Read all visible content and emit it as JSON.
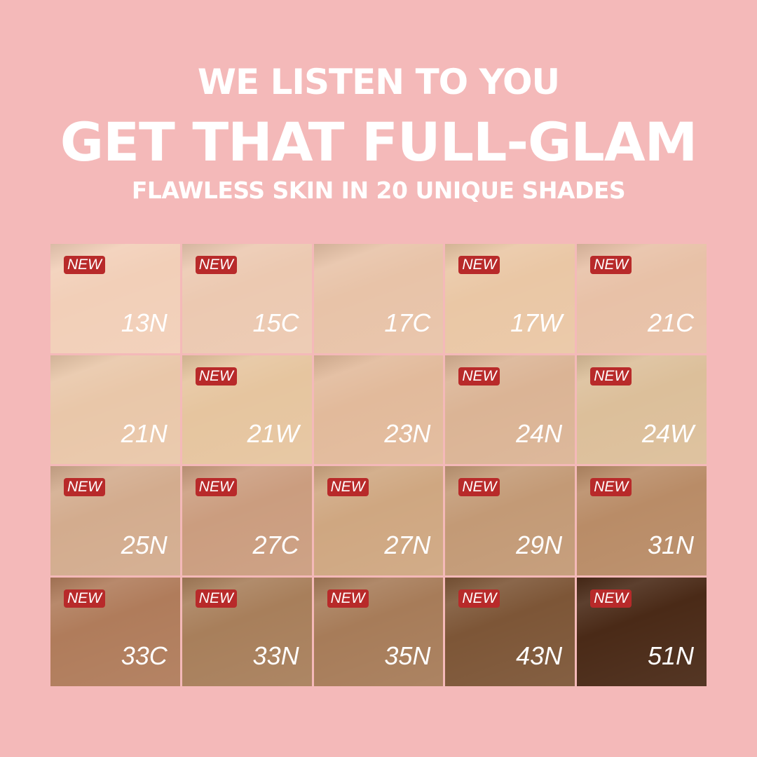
{
  "headline": {
    "line1": "WE LISTEN TO YOU",
    "line2": "GET THAT FULL-GLAM",
    "line3": "FLAWLESS SKIN IN 20 UNIQUE SHADES"
  },
  "colors": {
    "background": "#f4b9b9",
    "badge": "#b82a2a"
  },
  "shades": [
    {
      "name": "13N",
      "new": true,
      "color": "#f2cfb8"
    },
    {
      "name": "15C",
      "new": true,
      "color": "#ecc9b1"
    },
    {
      "name": "17C",
      "new": false,
      "color": "#e8c3a8"
    },
    {
      "name": "17W",
      "new": true,
      "color": "#eac7a5"
    },
    {
      "name": "21C",
      "new": true,
      "color": "#e8c1a7"
    },
    {
      "name": "21N",
      "new": false,
      "color": "#e9c7a9"
    },
    {
      "name": "21W",
      "new": true,
      "color": "#e6c59f"
    },
    {
      "name": "23N",
      "new": false,
      "color": "#e2ba9b"
    },
    {
      "name": "24N",
      "new": true,
      "color": "#dbb495"
    },
    {
      "name": "24W",
      "new": true,
      "color": "#dcbf9a"
    },
    {
      "name": "25N",
      "new": true,
      "color": "#d3ac8e"
    },
    {
      "name": "27C",
      "new": true,
      "color": "#cb9d7f"
    },
    {
      "name": "27N",
      "new": true,
      "color": "#cfa781"
    },
    {
      "name": "29N",
      "new": true,
      "color": "#c39a76"
    },
    {
      "name": "31N",
      "new": true,
      "color": "#b98c67"
    },
    {
      "name": "33C",
      "new": true,
      "color": "#b07c5b"
    },
    {
      "name": "33N",
      "new": true,
      "color": "#a87f5b"
    },
    {
      "name": "35N",
      "new": true,
      "color": "#a77c59"
    },
    {
      "name": "43N",
      "new": true,
      "color": "#7d5637"
    },
    {
      "name": "51N",
      "new": true,
      "color": "#4a2a17"
    }
  ],
  "badge_label": "NEW"
}
